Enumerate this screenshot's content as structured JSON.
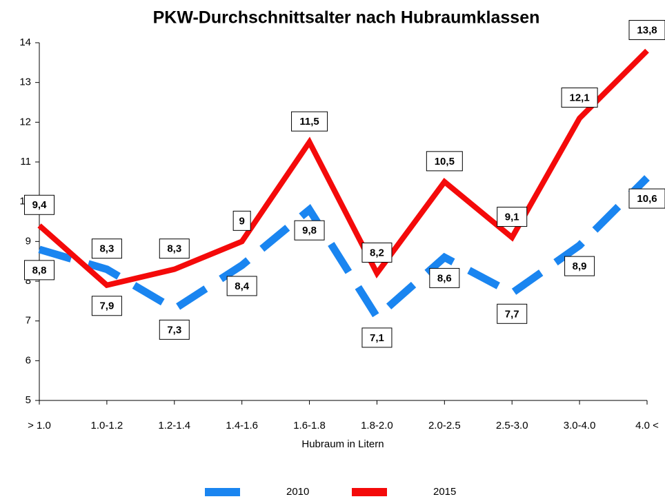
{
  "chart_data": {
    "type": "line",
    "title": "PKW-Durchschnittsalter nach Hubraumklassen",
    "x_label": "Hubraum in Litern",
    "categories": [
      "> 1.0",
      "1.0-1.2",
      "1.2-1.4",
      "1.4-1.6",
      "1.6-1.8",
      "1.8-2.0",
      "2.0-2.5",
      "2.5-3.0",
      "3.0-4.0",
      "4.0 <"
    ],
    "series": [
      {
        "name": "2010",
        "color": "#1a85f0",
        "dashed": true,
        "values": [
          8.8,
          8.3,
          7.3,
          8.4,
          9.8,
          7.1,
          8.6,
          7.7,
          8.9,
          10.6
        ],
        "value_labels": [
          "8,8",
          "8,3",
          "7,3",
          "8,4",
          "9,8",
          "7,1",
          "8,6",
          "7,7",
          "8,9",
          "10,6"
        ]
      },
      {
        "name": "2015",
        "color": "#f40a0a",
        "dashed": false,
        "values": [
          9.4,
          7.9,
          8.3,
          9,
          11.5,
          8.2,
          10.5,
          9.1,
          12.1,
          13.8
        ],
        "value_labels": [
          "9,4",
          "7,9",
          "8,3",
          "9",
          "11,5",
          "8,2",
          "10,5",
          "9,1",
          "12,1",
          "13,8"
        ]
      }
    ],
    "ylim": [
      5,
      14
    ],
    "yticks": [
      5,
      6,
      7,
      8,
      9,
      10,
      11,
      12,
      13,
      14
    ],
    "grid": false,
    "legend": "bottom"
  }
}
